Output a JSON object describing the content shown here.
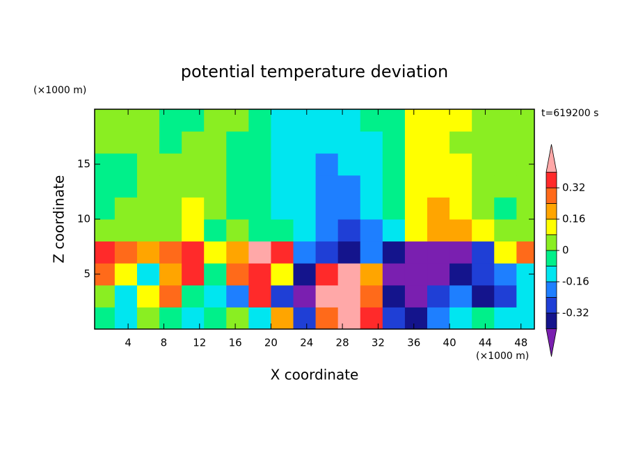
{
  "chart_data": {
    "type": "contour",
    "title": "potential temperature deviation",
    "time_label": "t=619200 s",
    "xlabel": "X coordinate",
    "ylabel": "Z coordinate",
    "xunit": "(×1000 m)",
    "yunit": "(×1000 m)",
    "xlim": [
      0.25,
      49.5
    ],
    "ylim": [
      0,
      20
    ],
    "xticks": [
      4,
      8,
      12,
      16,
      20,
      24,
      28,
      32,
      36,
      40,
      44,
      48
    ],
    "yticks": [
      5,
      10,
      15
    ],
    "x": [
      1.25,
      3.75,
      6.25,
      8.75,
      11.25,
      13.75,
      16.25,
      18.75,
      21.25,
      23.75,
      26.25,
      28.75,
      31.25,
      33.75,
      36.25,
      38.75,
      41.25,
      43.75,
      46.25,
      48.75
    ],
    "y": [
      1,
      3,
      5,
      7,
      9,
      11,
      13,
      15,
      17,
      19
    ],
    "z": [
      [
        -0.04,
        -0.12,
        0.04,
        -0.04,
        -0.12,
        -0.04,
        0.04,
        -0.12,
        0.2,
        -0.28,
        0.28,
        0.44,
        0.36,
        -0.28,
        -0.36,
        -0.2,
        -0.12,
        -0.04,
        -0.12,
        -0.12
      ],
      [
        0.04,
        -0.12,
        0.12,
        0.28,
        -0.04,
        -0.12,
        -0.2,
        0.36,
        -0.28,
        -0.44,
        0.44,
        0.44,
        0.28,
        -0.36,
        -0.44,
        -0.28,
        -0.2,
        -0.36,
        -0.28,
        -0.12
      ],
      [
        0.28,
        0.12,
        -0.12,
        0.2,
        0.36,
        -0.04,
        0.28,
        0.36,
        0.12,
        -0.36,
        0.36,
        0.44,
        0.2,
        -0.44,
        -0.44,
        -0.44,
        -0.36,
        -0.28,
        -0.2,
        -0.12
      ],
      [
        0.36,
        0.28,
        0.2,
        0.28,
        0.36,
        0.12,
        0.2,
        0.44,
        0.36,
        -0.2,
        -0.28,
        -0.36,
        -0.2,
        -0.36,
        -0.44,
        -0.44,
        -0.44,
        -0.28,
        0.12,
        0.28
      ],
      [
        0.04,
        0.04,
        0.04,
        0.04,
        0.12,
        -0.04,
        0.04,
        -0.04,
        -0.04,
        -0.12,
        -0.2,
        -0.28,
        -0.2,
        -0.12,
        0.12,
        0.2,
        0.2,
        0.12,
        0.04,
        0.04
      ],
      [
        -0.04,
        0.04,
        0.04,
        0.04,
        0.12,
        0.04,
        -0.04,
        -0.04,
        -0.12,
        -0.12,
        -0.2,
        -0.2,
        -0.12,
        -0.04,
        0.12,
        0.2,
        0.12,
        0.04,
        -0.04,
        0.04
      ],
      [
        -0.04,
        -0.04,
        0.04,
        0.04,
        0.04,
        0.04,
        -0.04,
        -0.04,
        -0.12,
        -0.12,
        -0.2,
        -0.2,
        -0.12,
        -0.04,
        0.12,
        0.12,
        0.12,
        0.04,
        0.04,
        0.04
      ],
      [
        -0.04,
        -0.04,
        0.04,
        0.04,
        0.04,
        0.04,
        -0.04,
        -0.04,
        -0.12,
        -0.12,
        -0.2,
        -0.12,
        -0.12,
        -0.04,
        0.12,
        0.12,
        0.12,
        0.04,
        0.04,
        0.04
      ],
      [
        0.04,
        0.04,
        0.04,
        -0.04,
        0.04,
        0.04,
        -0.04,
        -0.04,
        -0.12,
        -0.12,
        -0.12,
        -0.12,
        -0.12,
        -0.04,
        0.12,
        0.12,
        0.04,
        0.04,
        0.04,
        0.04
      ],
      [
        0.04,
        0.04,
        0.04,
        -0.04,
        -0.04,
        0.04,
        0.04,
        -0.04,
        -0.12,
        -0.12,
        -0.12,
        -0.12,
        -0.04,
        -0.04,
        0.12,
        0.12,
        0.12,
        0.04,
        0.04,
        0.04
      ]
    ],
    "levels": [
      -0.4,
      -0.32,
      -0.24,
      -0.16,
      -0.08,
      0,
      0.08,
      0.16,
      0.24,
      0.32,
      0.4
    ],
    "colors": [
      "#7a1fb0",
      "#14148c",
      "#1f3fd6",
      "#1e7fff",
      "#00e6f0",
      "#00f08a",
      "#8aee22",
      "#ffff00",
      "#ffa500",
      "#ff6a1a",
      "#ff2a2a",
      "#ffa8a8"
    ],
    "cbar_ticks": [
      0.32,
      0.16,
      0,
      -0.16,
      -0.32
    ]
  }
}
